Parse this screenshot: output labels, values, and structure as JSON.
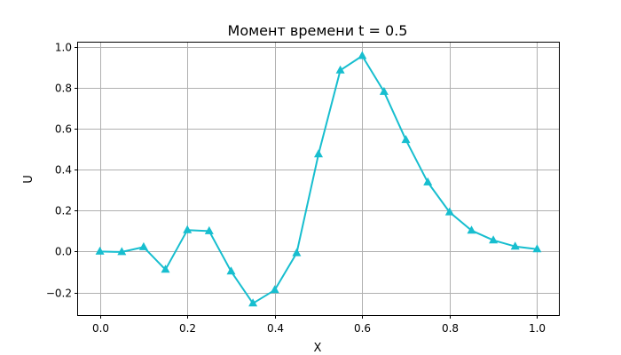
{
  "chart_data": {
    "type": "line",
    "title": "Момент времени t = 0.5",
    "xlabel": "X",
    "ylabel": "U",
    "xlim": [
      -0.05,
      1.05
    ],
    "ylim": [
      -0.31,
      1.02
    ],
    "xticks": [
      0.0,
      0.2,
      0.4,
      0.6,
      0.8,
      1.0
    ],
    "xtick_labels": [
      "0.0",
      "0.2",
      "0.4",
      "0.6",
      "0.8",
      "1.0"
    ],
    "yticks": [
      -0.2,
      0.0,
      0.2,
      0.4,
      0.6,
      0.8,
      1.0
    ],
    "ytick_labels": [
      "−0.2",
      "0.0",
      "0.2",
      "0.4",
      "0.6",
      "0.8",
      "1.0"
    ],
    "grid": true,
    "color": "#17becf",
    "marker": "triangle",
    "series": [
      {
        "x": [
          0.0,
          0.05,
          0.1,
          0.15,
          0.2,
          0.25,
          0.3,
          0.35,
          0.4,
          0.45,
          0.5,
          0.55,
          0.6,
          0.65,
          0.7,
          0.75,
          0.8,
          0.85,
          0.9,
          0.95,
          1.0
        ],
        "values": [
          0.0,
          -0.002,
          0.022,
          -0.088,
          0.105,
          0.1,
          -0.097,
          -0.253,
          -0.188,
          -0.007,
          0.475,
          0.885,
          0.955,
          0.78,
          0.545,
          0.338,
          0.192,
          0.103,
          0.055,
          0.025,
          0.012
        ]
      }
    ]
  }
}
